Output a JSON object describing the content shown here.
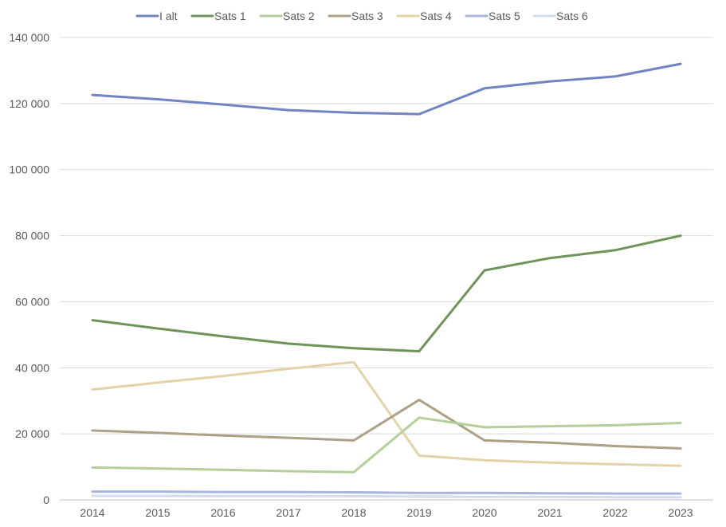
{
  "chart_data": {
    "type": "line",
    "title": "",
    "xlabel": "",
    "ylabel": "",
    "x": [
      "2014",
      "2015",
      "2016",
      "2017",
      "2018",
      "2019",
      "2020",
      "2021",
      "2022",
      "2023"
    ],
    "ylim": [
      0,
      140000
    ],
    "y_ticks": [
      0,
      20000,
      40000,
      60000,
      80000,
      100000,
      120000,
      140000
    ],
    "y_tick_labels": [
      "0",
      "20 000",
      "40 000",
      "60 000",
      "80 000",
      "100 000",
      "120 000",
      "140 000"
    ],
    "grid": true,
    "legend_position": "top",
    "series": [
      {
        "name": "I alt",
        "color": "#7084c4",
        "values": [
          122600,
          121300,
          119700,
          118000,
          117200,
          116800,
          124600,
          126700,
          128200,
          132000
        ]
      },
      {
        "name": "Sats 1",
        "color": "#70935a",
        "values": [
          54400,
          51900,
          49500,
          47300,
          45900,
          45000,
          69500,
          73200,
          75600,
          80000
        ]
      },
      {
        "name": "Sats 2",
        "color": "#b5cf9a",
        "values": [
          9800,
          9500,
          9100,
          8700,
          8400,
          24900,
          22000,
          22300,
          22600,
          23300
        ]
      },
      {
        "name": "Sats 3",
        "color": "#aba186",
        "values": [
          21000,
          20300,
          19500,
          18800,
          18000,
          30300,
          18000,
          17300,
          16300,
          15600
        ]
      },
      {
        "name": "Sats 4",
        "color": "#e3d3a9",
        "values": [
          33400,
          35500,
          37500,
          39700,
          41700,
          13400,
          12000,
          11300,
          10800,
          10300
        ]
      },
      {
        "name": "Sats 5",
        "color": "#a9b5dc",
        "values": [
          2500,
          2500,
          2400,
          2400,
          2300,
          2100,
          2100,
          2000,
          1900,
          1900
        ]
      },
      {
        "name": "Sats 6",
        "color": "#d5dbee",
        "values": [
          1200,
          1200,
          1100,
          1100,
          1100,
          1000,
          900,
          900,
          800,
          800
        ]
      }
    ]
  }
}
